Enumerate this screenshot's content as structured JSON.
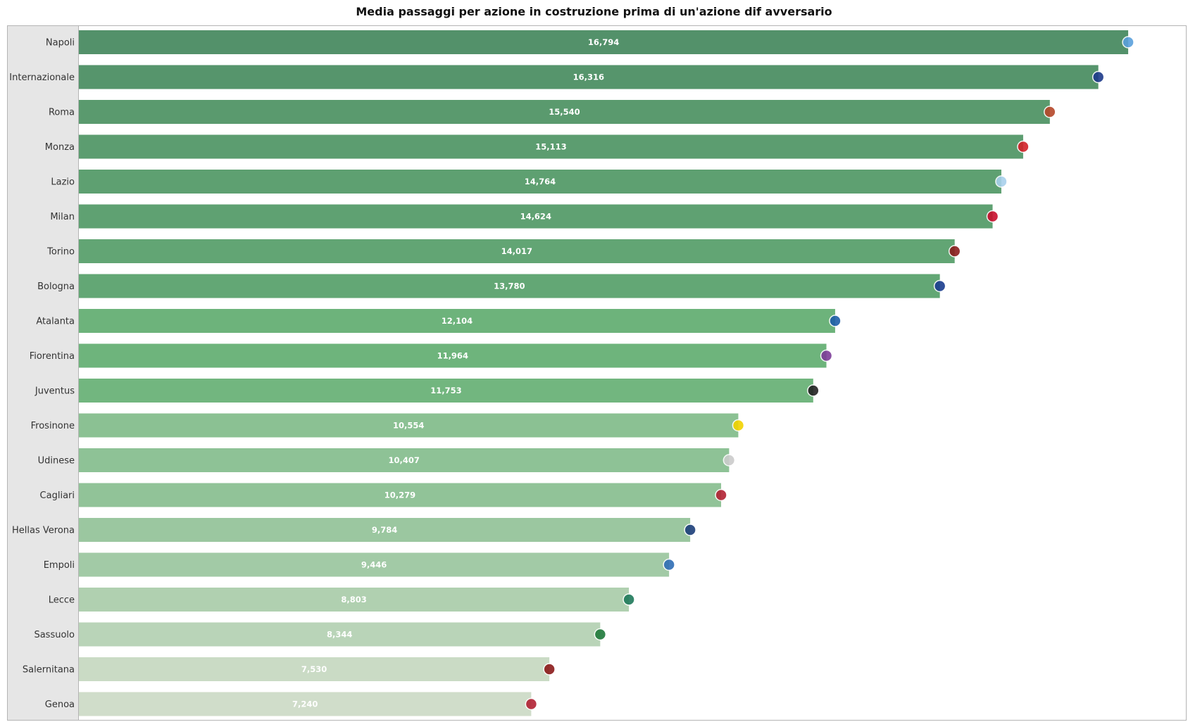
{
  "chart_data": {
    "type": "bar",
    "orientation": "horizontal",
    "title": "Media passaggi per azione in costruzione prima di un'azione dif avversario",
    "categories": [
      "Napoli",
      "Internazionale",
      "Roma",
      "Monza",
      "Lazio",
      "Milan",
      "Torino",
      "Bologna",
      "Atalanta",
      "Fiorentina",
      "Juventus",
      "Frosinone",
      "Udinese",
      "Cagliari",
      "Hellas Verona",
      "Empoli",
      "Lecce",
      "Sassuolo",
      "Salernitana",
      "Genoa"
    ],
    "values": [
      16.794,
      16.316,
      15.54,
      15.113,
      14.764,
      14.624,
      14.017,
      13.78,
      12.104,
      11.964,
      11.753,
      10.554,
      10.407,
      10.279,
      9.784,
      9.446,
      8.803,
      8.344,
      7.53,
      7.24
    ],
    "value_labels": [
      "16,794",
      "16,316",
      "15,540",
      "15,113",
      "14,764",
      "14,624",
      "14,017",
      "13,780",
      "12,104",
      "11,964",
      "11,753",
      "10,554",
      "10,407",
      "10,279",
      "9,784",
      "9,446",
      "8,803",
      "8,344",
      "7,530",
      "7,240"
    ],
    "xlim": [
      0,
      17.74
    ],
    "grid": false,
    "color_scale": {
      "high": "#53916a",
      "mid": "#6db47b",
      "low": "#d0ddca"
    },
    "logo_colors": [
      "#5aa0dc",
      "#1e3a8a",
      "#b5482a",
      "#d2232a",
      "#a8d0ec",
      "#c8102e",
      "#8b1e1e",
      "#1a3d8f",
      "#1f5fa8",
      "#7d3c98",
      "#222222",
      "#f2d300",
      "#cccccc",
      "#b22234",
      "#1c3f7a",
      "#2f6db5",
      "#1f7a5a",
      "#1f7a3a",
      "#8b1a1a",
      "#b22234"
    ]
  }
}
